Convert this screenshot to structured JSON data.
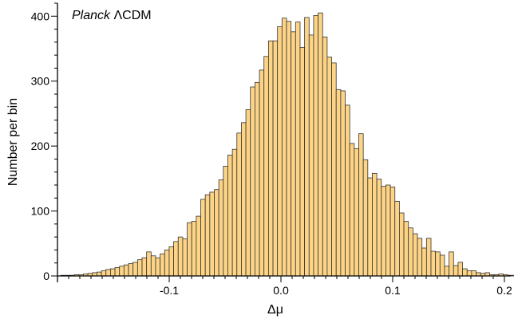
{
  "chart_data": {
    "type": "bar",
    "title": "",
    "annotation": {
      "italic": "Planck",
      "rest": "ΛCDM"
    },
    "xlabel": "Δμ",
    "ylabel": "Number per bin",
    "xlim": [
      -0.2,
      0.2
    ],
    "ylim": [
      0,
      420
    ],
    "xticks": [
      {
        "value": -0.1,
        "label": "-0.1"
      },
      {
        "value": 0.0,
        "label": "0.0"
      },
      {
        "value": 0.1,
        "label": "0.1"
      },
      {
        "value": 0.2,
        "label": "0.2"
      }
    ],
    "yticks": [
      {
        "value": 0,
        "label": "0"
      },
      {
        "value": 100,
        "label": "100"
      },
      {
        "value": 200,
        "label": "200"
      },
      {
        "value": 300,
        "label": "300"
      },
      {
        "value": 400,
        "label": "400"
      }
    ],
    "bin_start": -0.197,
    "bin_width": 0.00404,
    "values": [
      1,
      1,
      1,
      2,
      2,
      3,
      4,
      5,
      6,
      8,
      10,
      11,
      13,
      15,
      17,
      19,
      21,
      25,
      28,
      37,
      31,
      28,
      34,
      40,
      45,
      53,
      60,
      57,
      82,
      84,
      92,
      118,
      125,
      129,
      133,
      148,
      169,
      186,
      195,
      220,
      236,
      256,
      291,
      298,
      317,
      338,
      362,
      362,
      384,
      397,
      392,
      376,
      391,
      352,
      398,
      371,
      401,
      405,
      368,
      337,
      328,
      287,
      285,
      263,
      204,
      196,
      219,
      179,
      151,
      158,
      149,
      138,
      140,
      137,
      115,
      97,
      84,
      74,
      65,
      58,
      43,
      58,
      38,
      37,
      32,
      15,
      37,
      16,
      21,
      11,
      8,
      8,
      5,
      4,
      5,
      2,
      2,
      3,
      2,
      1,
      1,
      0,
      0,
      1,
      0,
      0,
      0,
      0,
      0,
      0,
      0,
      0
    ],
    "bar_color": "#fdd486",
    "bar_edge_color": "#333333",
    "grid": false,
    "legend": "none"
  }
}
